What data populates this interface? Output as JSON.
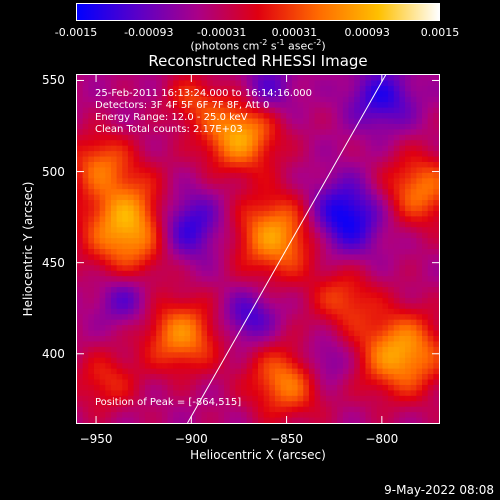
{
  "colorbar": {
    "gradient": [
      "#0000ff",
      "#5a00c8",
      "#aa0088",
      "#e00010",
      "#ff6a00",
      "#ffc000",
      "#ffffff"
    ],
    "ticks": [
      "-0.0015",
      "-0.00093",
      "-0.00031",
      "0.00031",
      "0.00093",
      "0.0015"
    ],
    "units_prefix": "(photons cm",
    "units_sup1": "-2",
    "units_mid": " s",
    "units_sup2": "-1",
    "units_suffix": " asec",
    "units_sup3": "-2",
    "units_end": ")"
  },
  "chart_data": {
    "type": "heatmap",
    "title": "Reconstructed RHESSI Image",
    "xlabel": "Heliocentric X (arcsec)",
    "ylabel": "Heliocentric Y (arcsec)",
    "xlim": [
      -960,
      -770
    ],
    "ylim": [
      362,
      553
    ],
    "x_ticks": [
      -950,
      -900,
      -850,
      -800
    ],
    "y_ticks": [
      400,
      450,
      500,
      550
    ],
    "color_range": [
      -0.0015,
      0.0015
    ],
    "limb_line": {
      "from": [
        -902,
        362
      ],
      "to": [
        -798,
        553
      ],
      "color": "#ffffff"
    },
    "hotspots": [
      {
        "x": -930,
        "y": 470,
        "amp": 0.00155,
        "sigma": 18
      },
      {
        "x": -875,
        "y": 520,
        "amp": 0.0013,
        "sigma": 14
      },
      {
        "x": -855,
        "y": 465,
        "amp": 0.00125,
        "sigma": 16
      },
      {
        "x": -905,
        "y": 410,
        "amp": 0.0011,
        "sigma": 14
      },
      {
        "x": -850,
        "y": 385,
        "amp": 0.00105,
        "sigma": 14
      },
      {
        "x": -790,
        "y": 400,
        "amp": 0.0013,
        "sigma": 16
      },
      {
        "x": -780,
        "y": 490,
        "amp": 0.001,
        "sigma": 14
      },
      {
        "x": -948,
        "y": 505,
        "amp": 0.0008,
        "sigma": 12
      },
      {
        "x": -820,
        "y": 430,
        "amp": 0.0007,
        "sigma": 12
      },
      {
        "x": -900,
        "y": 540,
        "amp": 0.0006,
        "sigma": 10
      },
      {
        "x": -945,
        "y": 385,
        "amp": 0.0006,
        "sigma": 12
      }
    ],
    "coldspots": [
      {
        "x": -905,
        "y": 470,
        "amp": -0.0012,
        "sigma": 14
      },
      {
        "x": -820,
        "y": 475,
        "amp": -0.0011,
        "sigma": 14
      },
      {
        "x": -800,
        "y": 540,
        "amp": -0.0008,
        "sigma": 12
      },
      {
        "x": -870,
        "y": 420,
        "amp": -0.0007,
        "sigma": 10
      },
      {
        "x": -935,
        "y": 430,
        "amp": -0.0006,
        "sigma": 10
      },
      {
        "x": -860,
        "y": 545,
        "amp": -0.0006,
        "sigma": 10
      },
      {
        "x": -830,
        "y": 395,
        "amp": -0.0006,
        "sigma": 10
      }
    ]
  },
  "annotations": {
    "time_range": "25-Feb-2011 16:13:24.000 to 16:14:16.000",
    "detectors": "Detectors: 3F 4F 5F 6F 7F 8F, Att 0",
    "energy": "Energy Range: 12.0 - 25.0 keV",
    "clean": "Clean     Total counts: 2.17E+03",
    "peak": "Position of Peak = [-864,515]"
  },
  "footer": {
    "date": "9-May-2022 08:08"
  }
}
